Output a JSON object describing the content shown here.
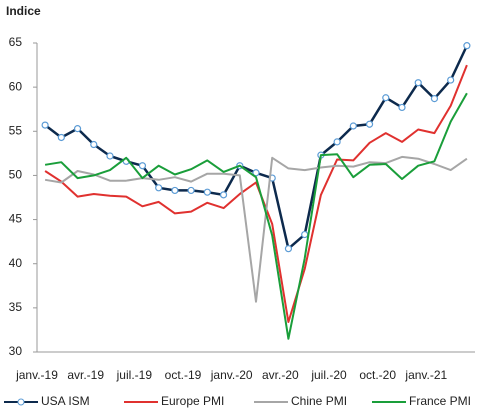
{
  "chart_data": {
    "type": "line",
    "title": "Indice",
    "categories": [
      "janv.-19",
      null,
      null,
      "avr.-19",
      null,
      null,
      "juil.-19",
      null,
      null,
      "oct.-19",
      null,
      null,
      "janv.-20",
      null,
      null,
      "avr.-20",
      null,
      null,
      "juil.-20",
      null,
      null,
      "oct.-20",
      null,
      null,
      "janv.-21",
      null,
      null
    ],
    "series": [
      {
        "name": "USA ISM",
        "color": "#0d2a4d",
        "marker": true,
        "values": [
          55.7,
          54.3,
          55.3,
          53.5,
          52.2,
          51.6,
          51.1,
          48.6,
          48.3,
          48.3,
          48.1,
          47.8,
          51.1,
          50.3,
          49.7,
          41.7,
          43.3,
          52.3,
          53.8,
          55.6,
          55.8,
          58.8,
          57.7,
          60.5,
          58.7,
          60.8,
          64.7
        ]
      },
      {
        "name": "Europe PMI",
        "color": "#e0312f",
        "marker": false,
        "values": [
          50.5,
          49.3,
          47.6,
          47.9,
          47.7,
          47.6,
          46.5,
          47.0,
          45.7,
          45.9,
          46.9,
          46.3,
          47.9,
          49.2,
          44.5,
          33.4,
          39.4,
          47.8,
          51.8,
          51.7,
          53.7,
          54.8,
          53.8,
          55.2,
          54.8,
          57.9,
          62.5
        ]
      },
      {
        "name": "Chine PMI",
        "color": "#a6a6a6",
        "marker": false,
        "values": [
          49.5,
          49.2,
          50.5,
          50.1,
          49.4,
          49.4,
          49.7,
          49.5,
          49.8,
          49.3,
          50.2,
          50.2,
          50.0,
          35.7,
          52.0,
          50.8,
          50.6,
          50.9,
          51.1,
          51.0,
          51.5,
          51.4,
          52.1,
          51.9,
          51.3,
          50.6,
          51.9
        ]
      },
      {
        "name": "France PMI",
        "color": "#1a9e3a",
        "marker": false,
        "values": [
          51.2,
          51.5,
          49.7,
          50.0,
          50.6,
          52.0,
          49.7,
          51.1,
          50.1,
          50.7,
          51.7,
          50.4,
          51.1,
          49.8,
          43.2,
          31.5,
          40.6,
          52.3,
          52.4,
          49.8,
          51.2,
          51.3,
          49.6,
          51.1,
          51.6,
          56.1,
          59.3
        ]
      }
    ],
    "ylim": [
      30,
      65
    ],
    "yticks": [
      30,
      35,
      40,
      45,
      50,
      55,
      60,
      65
    ],
    "grid": false,
    "legend": "bottom"
  }
}
